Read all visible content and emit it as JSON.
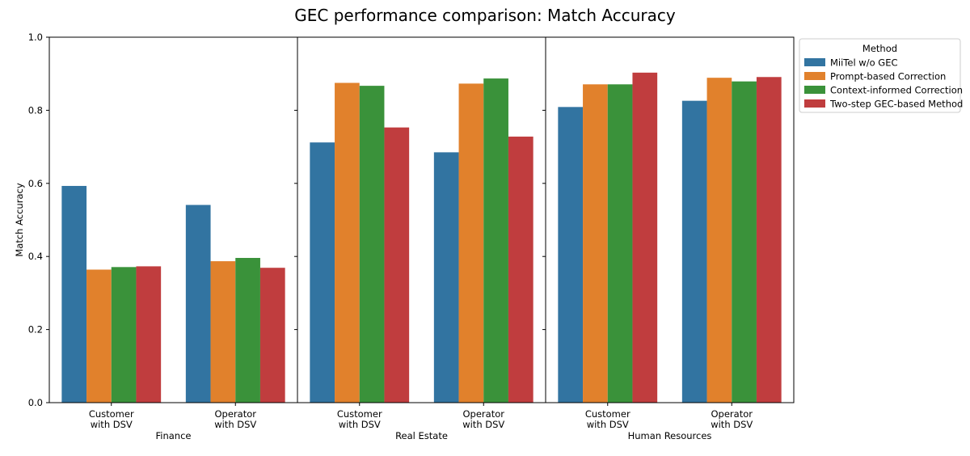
{
  "chart_data": {
    "type": "bar",
    "title": "GEC performance comparison: Match Accuracy",
    "ylabel": "Match Accuracy",
    "ylim": [
      0,
      1.0
    ],
    "yticks": [
      "0.0",
      "0.2",
      "0.4",
      "0.6",
      "0.8",
      "1.0"
    ],
    "grid": false,
    "legend": {
      "title": "Method",
      "placement": "outside-top-right"
    },
    "categories": [
      "Customer\nwith DSV",
      "Operator\nwith DSV"
    ],
    "series": [
      {
        "name": "MiiTel w/o GEC",
        "color": "#3274a1"
      },
      {
        "name": "Prompt-based Correction",
        "color": "#e1812c"
      },
      {
        "name": "Context-informed Correction",
        "color": "#3a923a"
      },
      {
        "name": "Two-step GEC-based Method",
        "color": "#c03d3e"
      }
    ],
    "facets": [
      {
        "name": "Finance",
        "values": [
          [
            0.593,
            0.541
          ],
          [
            0.364,
            0.387
          ],
          [
            0.371,
            0.396
          ],
          [
            0.373,
            0.369
          ]
        ]
      },
      {
        "name": "Real Estate",
        "values": [
          [
            0.712,
            0.685
          ],
          [
            0.875,
            0.873
          ],
          [
            0.867,
            0.887
          ],
          [
            0.753,
            0.728
          ]
        ]
      },
      {
        "name": "Human Resources",
        "values": [
          [
            0.809,
            0.826
          ],
          [
            0.871,
            0.889
          ],
          [
            0.871,
            0.879
          ],
          [
            0.903,
            0.891
          ]
        ]
      }
    ]
  }
}
